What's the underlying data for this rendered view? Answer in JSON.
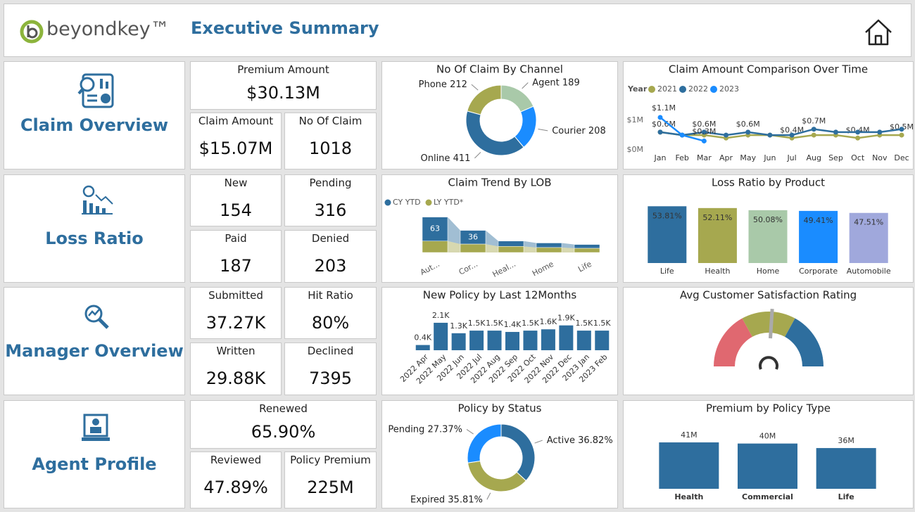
{
  "header": {
    "logo": "beyondkey™",
    "title": "Executive Summary"
  },
  "sections": [
    {
      "title": "Claim Overview",
      "kpis": [
        {
          "label": "Premium Amount",
          "value": "$30.13M"
        },
        {
          "label": "Claim Amount",
          "value": "$15.07M"
        },
        {
          "label": "No Of Claim",
          "value": "1018"
        }
      ]
    },
    {
      "title": "Loss Ratio",
      "kpis": [
        {
          "label": "New",
          "value": "154"
        },
        {
          "label": "Pending",
          "value": "316"
        },
        {
          "label": "Paid",
          "value": "187"
        },
        {
          "label": "Denied",
          "value": "203"
        }
      ]
    },
    {
      "title": "Manager Overview",
      "kpis": [
        {
          "label": "Submitted",
          "value": "37.27K"
        },
        {
          "label": "Hit Ratio",
          "value": "80%"
        },
        {
          "label": "Written",
          "value": "29.88K"
        },
        {
          "label": "Declined",
          "value": "7395"
        }
      ]
    },
    {
      "title": "Agent Profile",
      "kpis": [
        {
          "label": "Renewed",
          "value": "65.90%"
        },
        {
          "label": "Reviewed",
          "value": "47.89%"
        },
        {
          "label": "Policy Premium",
          "value": "225M"
        }
      ]
    }
  ],
  "chart_data": [
    {
      "type": "donut",
      "title": "No Of Claim By Channel",
      "categories": [
        "Agent",
        "Courier",
        "Online",
        "Phone"
      ],
      "values": [
        189,
        208,
        411,
        212
      ],
      "colors": [
        "#a9c9a9",
        "#1a8cff",
        "#2e6e9e",
        "#a6a84f"
      ]
    },
    {
      "type": "line",
      "title": "Claim Amount Comparison Over Time",
      "legend_title": "Year",
      "categories": [
        "Jan",
        "Feb",
        "Mar",
        "Apr",
        "May",
        "Jun",
        "Jul",
        "Aug",
        "Sep",
        "Oct",
        "Nov",
        "Dec"
      ],
      "series": [
        {
          "name": "2021",
          "color": "#a6a84f",
          "values": [
            0.6,
            0.5,
            0.5,
            0.4,
            0.5,
            0.5,
            0.4,
            0.5,
            0.5,
            0.4,
            0.5,
            0.5
          ],
          "value_labels": [
            null,
            null,
            null,
            null,
            null,
            null,
            "$0.4M",
            null,
            null,
            "$0.4M",
            null,
            "$0.5M"
          ]
        },
        {
          "name": "2022",
          "color": "#2e6e9e",
          "values": [
            0.6,
            0.5,
            0.6,
            0.5,
            0.6,
            0.5,
            0.5,
            0.7,
            0.6,
            0.6,
            0.6,
            0.7
          ],
          "value_labels": [
            "$0.6M",
            null,
            "$0.6M",
            null,
            "$0.6M",
            null,
            null,
            "$0.7M",
            null,
            null,
            null,
            null
          ]
        },
        {
          "name": "2023",
          "color": "#1a8cff",
          "values": [
            1.1,
            0.5,
            0.3,
            null,
            null,
            null,
            null,
            null,
            null,
            null,
            null,
            null
          ],
          "value_labels": [
            "$1.1M",
            null,
            "$0.3M",
            null,
            null,
            null,
            null,
            null,
            null,
            null,
            null,
            null
          ]
        }
      ],
      "ylim": [
        0,
        1.6
      ],
      "yticks": [
        {
          "value": 0,
          "label": "$0M"
        },
        {
          "value": 1,
          "label": "$1M"
        }
      ]
    },
    {
      "type": "ribbon",
      "title": "Claim Trend By LOB",
      "categories": [
        "Aut...",
        "Cor...",
        "Heal...",
        "Home",
        "Life"
      ],
      "series": [
        {
          "name": "CY YTD",
          "color": "#2e6e9e",
          "values": [
            63,
            36,
            14,
            12,
            10
          ],
          "value_labels": [
            "63",
            "36",
            null,
            null,
            null
          ]
        },
        {
          "name": "LY YTD*",
          "color": "#a6a84f",
          "values": [
            30,
            22,
            16,
            13,
            11
          ]
        }
      ],
      "ylim": [
        0,
        120
      ]
    },
    {
      "type": "bar",
      "title": "Loss Ratio by Product",
      "categories": [
        "Life",
        "Health",
        "Home",
        "Corporate",
        "Automobile"
      ],
      "values": [
        53.81,
        52.11,
        50.08,
        49.41,
        47.51
      ],
      "value_labels": [
        "53.81%",
        "52.11%",
        "50.08%",
        "49.41%",
        "47.51%"
      ],
      "colors": [
        "#2e6e9e",
        "#a6a84f",
        "#a9c9a9",
        "#1a8cff",
        "#a0a8dc"
      ],
      "ylim": [
        0,
        60
      ]
    },
    {
      "type": "bar",
      "title": "New Policy by Last 12Months",
      "categories": [
        "2022 Apr",
        "2022 May",
        "2022 Jun",
        "2022 Jul",
        "2022 Aug",
        "2022 Sep",
        "2022 Oct",
        "2022 Nov",
        "2022 Dec",
        "2023 Jan",
        "2023 Feb"
      ],
      "values": [
        400,
        2100,
        1300,
        1500,
        1500,
        1400,
        1500,
        1600,
        1900,
        1500,
        1500
      ],
      "value_labels": [
        "0.4K",
        "2.1K",
        "1.3K",
        "1.5K",
        "1.5K",
        "1.4K",
        "1.5K",
        "1.6K",
        "1.9K",
        "1.5K",
        "1.5K"
      ],
      "color": "#2e6e9e",
      "ylim": [
        0,
        2500
      ]
    },
    {
      "type": "gauge",
      "title": "Avg Customer Satisfaction Rating",
      "ylim": [
        0,
        5
      ],
      "value": 2.6,
      "bands": [
        {
          "to": 1.7,
          "color": "#e06870"
        },
        {
          "to": 3.3,
          "color": "#a6a84f"
        },
        {
          "to": 5,
          "color": "#2e6e9e"
        }
      ],
      "needle_color": "#aaaaaa"
    },
    {
      "type": "donut",
      "title": "Policy by Status",
      "categories": [
        "Active",
        "Expired",
        "Pending"
      ],
      "values": [
        36.82,
        35.81,
        27.37
      ],
      "value_labels": [
        "36.82%",
        "35.81%",
        "27.37%"
      ],
      "colors": [
        "#2e6e9e",
        "#a6a84f",
        "#1a8cff"
      ]
    },
    {
      "type": "bar",
      "title": "Premium by Policy Type",
      "categories": [
        "Health",
        "Commercial",
        "Life"
      ],
      "values": [
        41,
        40,
        36
      ],
      "value_labels": [
        "41M",
        "40M",
        "36M"
      ],
      "color": "#2e6e9e",
      "ylim": [
        0,
        45
      ]
    }
  ]
}
